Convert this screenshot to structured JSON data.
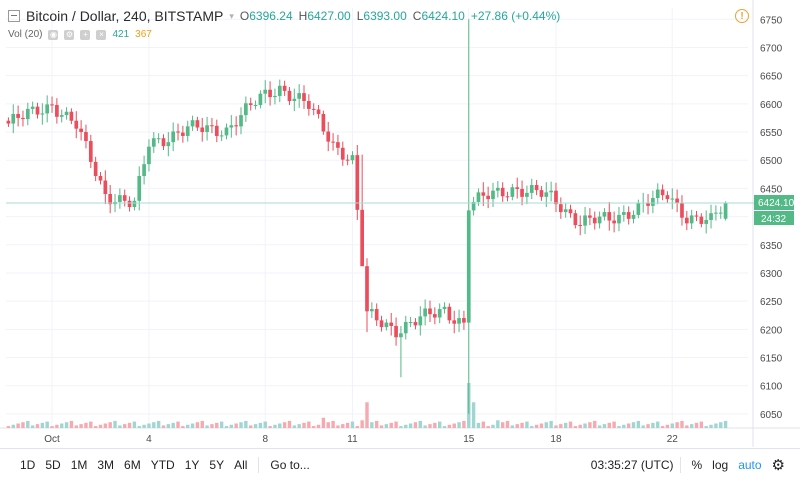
{
  "header": {
    "collapse_icon": "minus-box-icon",
    "title": "Bitcoin / Dollar, 240, BITSTAMP",
    "dropdown_icon": "chevron-down-icon",
    "o_label": "O",
    "o_value": "6396.24",
    "h_label": "H",
    "h_value": "6427.00",
    "l_label": "L",
    "l_value": "6393.00",
    "c_label": "C",
    "c_value": "6424.10",
    "change": "+27.86 (+0.44%)"
  },
  "volume_legend": {
    "label": "Vol (20)",
    "value_a": "421",
    "value_b": "367",
    "icons": [
      "eye-icon",
      "settings-icon",
      "plus-icon",
      "close-icon"
    ]
  },
  "price_axis": {
    "current_price": "6424.10",
    "countdown": "24:32"
  },
  "toolbar": {
    "ranges": [
      "1D",
      "5D",
      "1M",
      "3M",
      "6M",
      "YTD",
      "1Y",
      "5Y",
      "All"
    ],
    "goto": "Go to...",
    "time": "03:35:27 (UTC)",
    "percent": "%",
    "log": "log",
    "auto": "auto",
    "settings_icon": "gear-icon"
  },
  "colors": {
    "up": "#53b987",
    "down": "#eb4d5c",
    "vol_up": "#9fd6d1",
    "vol_down": "#f6a9ae",
    "accent": "#2196f3"
  },
  "chart_data": {
    "type": "candlestick",
    "title": "Bitcoin / Dollar, 240, BITSTAMP",
    "ylim": [
      6025,
      6770
    ],
    "yticks": [
      6050,
      6100,
      6150,
      6200,
      6250,
      6300,
      6350,
      6400,
      6450,
      6500,
      6550,
      6600,
      6650,
      6700,
      6750
    ],
    "x_tick_labels": [
      {
        "index": 9,
        "label": "Oct"
      },
      {
        "index": 29,
        "label": "4"
      },
      {
        "index": 53,
        "label": "8"
      },
      {
        "index": 71,
        "label": "11"
      },
      {
        "index": 95,
        "label": "15"
      },
      {
        "index": 113,
        "label": "18"
      },
      {
        "index": 137,
        "label": "22"
      }
    ],
    "grid": true,
    "candles": [],
    "volume": []
  }
}
